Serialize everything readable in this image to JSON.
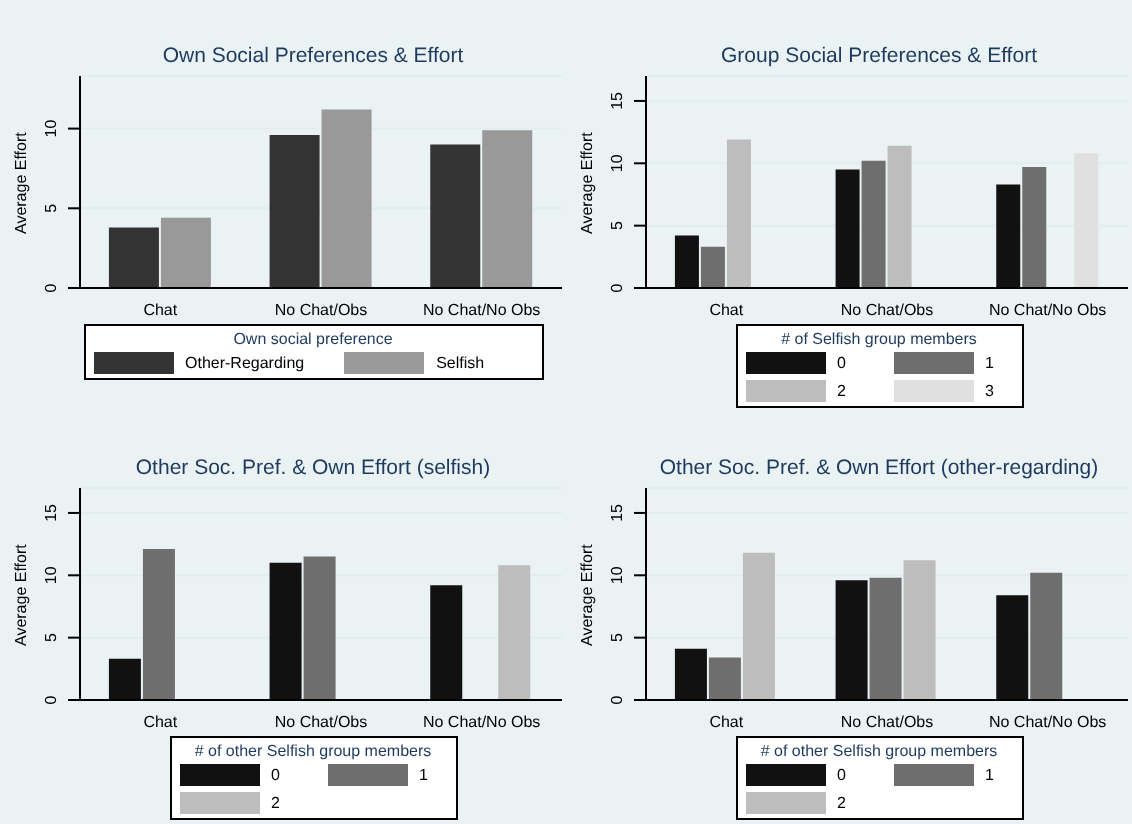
{
  "chart_data": [
    {
      "type": "bar",
      "title": "Own Social Preferences & Effort",
      "ylabel": "Average Effort",
      "categories": [
        "Chat",
        "No Chat/Obs",
        "No Chat/No Obs"
      ],
      "ylim": [
        0,
        13.3
      ],
      "yticks": [
        0,
        5,
        10
      ],
      "grid": "y",
      "legend": "bottom",
      "legend_title": "Own social preference",
      "series": [
        {
          "name": "Other-Regarding",
          "color": "#333333",
          "values": [
            3.8,
            9.6,
            9.0
          ]
        },
        {
          "name": "Selfish",
          "color": "#999999",
          "values": [
            4.4,
            11.2,
            9.9
          ]
        }
      ]
    },
    {
      "type": "bar",
      "title": "Group Social Preferences & Effort",
      "ylabel": "Average Effort",
      "categories": [
        "Chat",
        "No Chat/Obs",
        "No Chat/No Obs"
      ],
      "ylim": [
        0,
        17
      ],
      "yticks": [
        0,
        5,
        10,
        15
      ],
      "grid": "y",
      "legend": "bottom",
      "legend_title": "# of Selfish group members",
      "series": [
        {
          "name": "0",
          "color": "#111111",
          "values": [
            4.2,
            9.5,
            8.3
          ]
        },
        {
          "name": "1",
          "color": "#6e6e6e",
          "values": [
            3.3,
            10.2,
            9.7
          ]
        },
        {
          "name": "2",
          "color": "#bdbdbd",
          "values": [
            11.9,
            11.4,
            null
          ]
        },
        {
          "name": "3",
          "color": "#e0e0e0",
          "values": [
            null,
            null,
            10.8
          ]
        }
      ]
    },
    {
      "type": "bar",
      "title": "Other Soc. Pref. & Own Effort (selfish)",
      "ylabel": "Average Effort",
      "categories": [
        "Chat",
        "No Chat/Obs",
        "No Chat/No Obs"
      ],
      "ylim": [
        0,
        17
      ],
      "yticks": [
        0,
        5,
        10,
        15
      ],
      "grid": "y",
      "legend": "bottom",
      "legend_title": "# of other Selfish group members",
      "series": [
        {
          "name": "0",
          "color": "#111111",
          "values": [
            3.3,
            11.0,
            9.2
          ]
        },
        {
          "name": "1",
          "color": "#6e6e6e",
          "values": [
            12.1,
            11.5,
            null
          ]
        },
        {
          "name": "2",
          "color": "#bdbdbd",
          "values": [
            null,
            null,
            10.8
          ]
        }
      ]
    },
    {
      "type": "bar",
      "title": "Other Soc. Pref. & Own Effort (other-regarding)",
      "ylabel": "Average Effort",
      "categories": [
        "Chat",
        "No Chat/Obs",
        "No Chat/No Obs"
      ],
      "ylim": [
        0,
        17
      ],
      "yticks": [
        0,
        5,
        10,
        15
      ],
      "grid": "y",
      "legend": "bottom",
      "legend_title": "# of other Selfish group members",
      "series": [
        {
          "name": "0",
          "color": "#111111",
          "values": [
            4.1,
            9.6,
            8.4
          ]
        },
        {
          "name": "1",
          "color": "#6e6e6e",
          "values": [
            3.4,
            9.8,
            10.2
          ]
        },
        {
          "name": "2",
          "color": "#bdbdbd",
          "values": [
            11.8,
            11.2,
            null
          ]
        }
      ]
    }
  ]
}
